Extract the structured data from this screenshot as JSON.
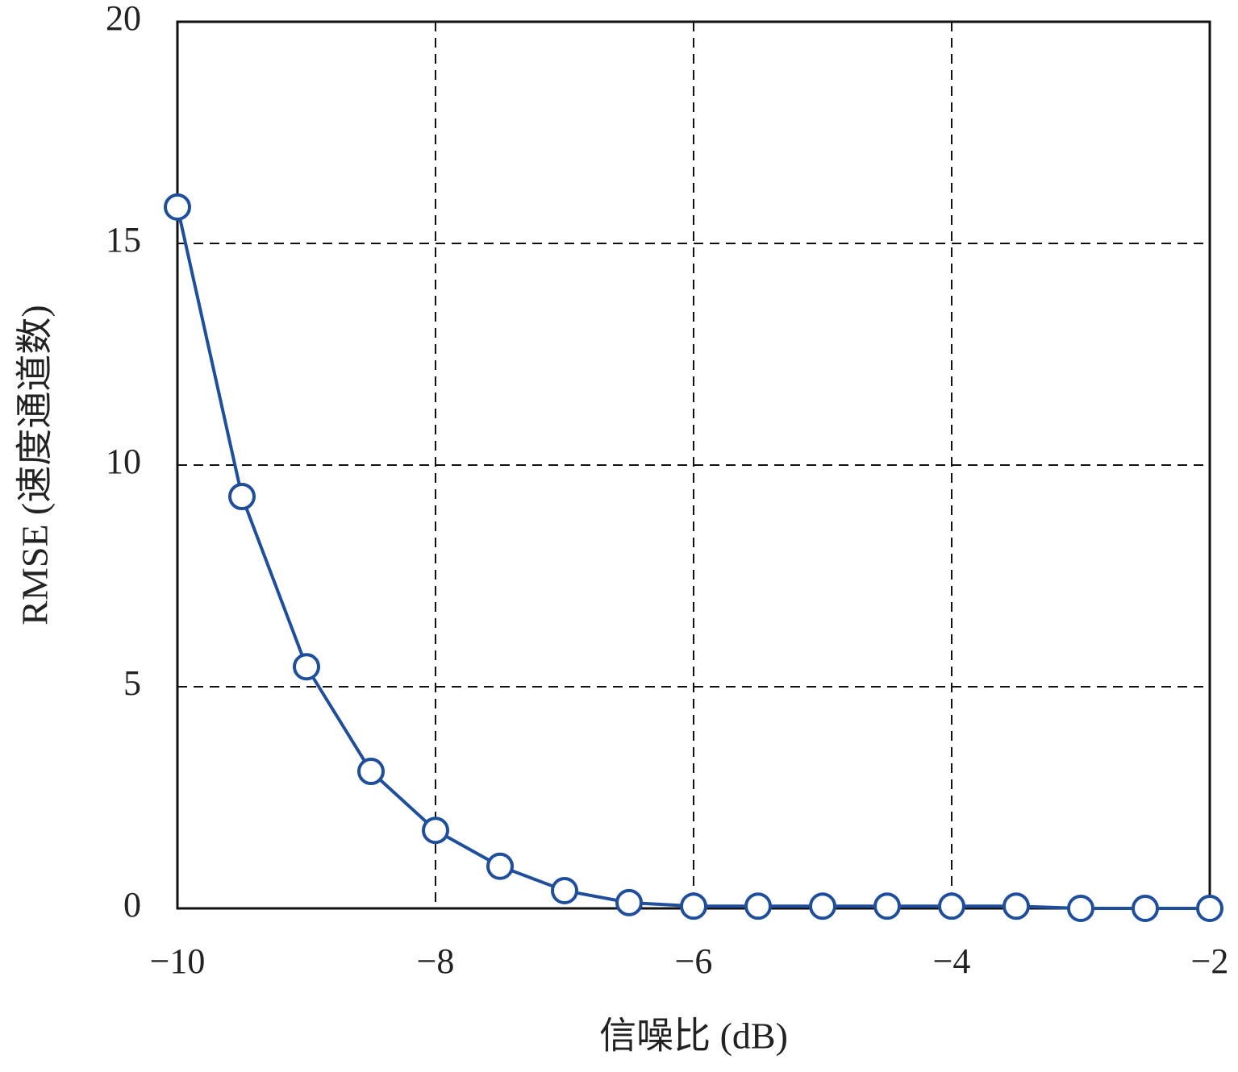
{
  "chart_data": {
    "type": "line",
    "xlabel": "信噪比 (dB)",
    "ylabel": "RMSE (速度通道数)",
    "x": [
      -10,
      -9.5,
      -9,
      -8.5,
      -8,
      -7.5,
      -7,
      -6.5,
      -6,
      -5.5,
      -5,
      -4.5,
      -4,
      -3.5,
      -3,
      -2.5,
      -2
    ],
    "series": [
      {
        "color": "#1f4e9c",
        "marker": "circle",
        "values": [
          15.82,
          9.29,
          5.45,
          3.09,
          1.76,
          0.95,
          0.4,
          0.13,
          0.05,
          0.05,
          0.05,
          0.05,
          0.05,
          0.05,
          0,
          0,
          0
        ]
      }
    ],
    "xlim": [
      -10,
      -2
    ],
    "ylim": [
      0,
      20
    ],
    "xticks": [
      {
        "value": -10,
        "label": "−10"
      },
      {
        "value": -8,
        "label": "−8"
      },
      {
        "value": -6,
        "label": "−6"
      },
      {
        "value": -4,
        "label": "−4"
      },
      {
        "value": -2,
        "label": "−2"
      }
    ],
    "yticks": [
      0,
      5,
      10,
      15,
      20
    ],
    "grid": true
  }
}
